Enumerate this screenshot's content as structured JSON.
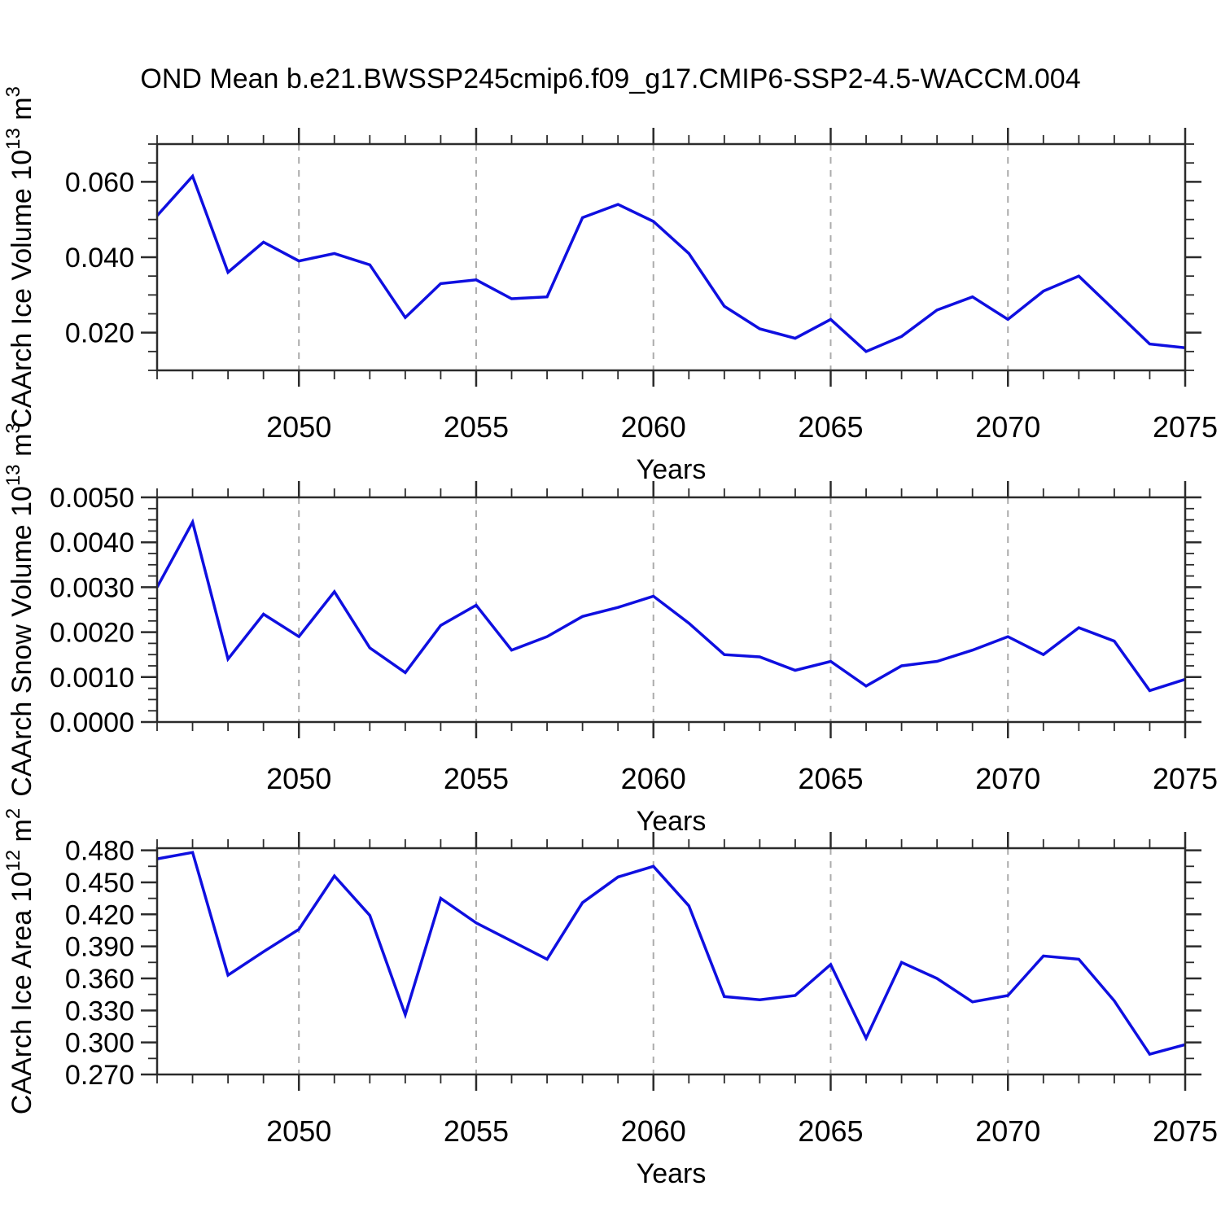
{
  "title": "OND Mean b.e21.BWSSP245cmip6.f09_g17.CMIP6-SSP2-4.5-WACCM.004",
  "colors": {
    "line": "#0f0fe0",
    "frame": "#2b2b2b",
    "grid": "#ababab",
    "text": "#000000",
    "background": "#ffffff"
  },
  "chart_data": [
    {
      "type": "line",
      "panel": "ice-volume",
      "ylabel_segments": [
        {
          "t": "CAArch Ice Volume 10",
          "sup": false
        },
        {
          "t": "13",
          "sup": true
        },
        {
          "t": " m",
          "sup": false
        },
        {
          "t": "3",
          "sup": true
        }
      ],
      "xlabel": "Years",
      "x": [
        2046,
        2047,
        2048,
        2049,
        2050,
        2051,
        2052,
        2053,
        2054,
        2055,
        2056,
        2057,
        2058,
        2059,
        2060,
        2061,
        2062,
        2063,
        2064,
        2065,
        2066,
        2067,
        2068,
        2069,
        2070,
        2071,
        2072,
        2073,
        2074,
        2075
      ],
      "values": [
        0.051,
        0.0615,
        0.036,
        0.044,
        0.039,
        0.041,
        0.038,
        0.024,
        0.033,
        0.034,
        0.029,
        0.0295,
        0.0505,
        0.054,
        0.0495,
        0.041,
        0.027,
        0.021,
        0.0185,
        0.0235,
        0.015,
        0.019,
        0.026,
        0.0295,
        0.0235,
        0.031,
        0.035,
        0.026,
        0.017,
        0.016
      ],
      "xlim": [
        2046,
        2075
      ],
      "ylim": [
        0.01,
        0.07
      ],
      "xtick_major": [
        2050,
        2055,
        2060,
        2065,
        2070,
        2075
      ],
      "xtick_labels": [
        "2050",
        "2055",
        "2060",
        "2065",
        "2070",
        "2075"
      ],
      "xtick_minor_step": 1,
      "grid_years": [
        2050,
        2055,
        2060,
        2065,
        2070
      ],
      "ytick_major": [
        0.02,
        0.04,
        0.06
      ],
      "ytick_labels": [
        "0.020",
        "0.040",
        "0.060"
      ],
      "ytick_minor_step": 0.005
    },
    {
      "type": "line",
      "panel": "snow-volume",
      "ylabel_segments": [
        {
          "t": "CAArch Snow Volume 10",
          "sup": false
        },
        {
          "t": "13",
          "sup": true
        },
        {
          "t": " m",
          "sup": false
        },
        {
          "t": "3",
          "sup": true
        }
      ],
      "xlabel": "Years",
      "x": [
        2046,
        2047,
        2048,
        2049,
        2050,
        2051,
        2052,
        2053,
        2054,
        2055,
        2056,
        2057,
        2058,
        2059,
        2060,
        2061,
        2062,
        2063,
        2064,
        2065,
        2066,
        2067,
        2068,
        2069,
        2070,
        2071,
        2072,
        2073,
        2074,
        2075
      ],
      "values": [
        0.003,
        0.00445,
        0.0014,
        0.0024,
        0.0019,
        0.0029,
        0.00165,
        0.0011,
        0.00215,
        0.0026,
        0.0016,
        0.0019,
        0.00235,
        0.00255,
        0.0028,
        0.0022,
        0.0015,
        0.00145,
        0.00115,
        0.00135,
        0.0008,
        0.00125,
        0.00135,
        0.0016,
        0.0019,
        0.0015,
        0.0021,
        0.0018,
        0.0007,
        0.00095
      ],
      "xlim": [
        2046,
        2075
      ],
      "ylim": [
        0.0,
        0.005
      ],
      "xtick_major": [
        2050,
        2055,
        2060,
        2065,
        2070,
        2075
      ],
      "xtick_labels": [
        "2050",
        "2055",
        "2060",
        "2065",
        "2070",
        "2075"
      ],
      "xtick_minor_step": 1,
      "grid_years": [
        2050,
        2055,
        2060,
        2065,
        2070
      ],
      "ytick_major": [
        0.0,
        0.001,
        0.002,
        0.003,
        0.004,
        0.005
      ],
      "ytick_labels": [
        "0.0000",
        "0.0010",
        "0.0020",
        "0.0030",
        "0.0040",
        "0.0050"
      ],
      "ytick_minor_step": 0.00025
    },
    {
      "type": "line",
      "panel": "ice-area",
      "ylabel_segments": [
        {
          "t": "CAArch Ice Area 10",
          "sup": false
        },
        {
          "t": "12",
          "sup": true
        },
        {
          "t": " m",
          "sup": false
        },
        {
          "t": "2",
          "sup": true
        }
      ],
      "xlabel": "Years",
      "x": [
        2046,
        2047,
        2048,
        2049,
        2050,
        2051,
        2052,
        2053,
        2054,
        2055,
        2056,
        2057,
        2058,
        2059,
        2060,
        2061,
        2062,
        2063,
        2064,
        2065,
        2066,
        2067,
        2068,
        2069,
        2070,
        2071,
        2072,
        2073,
        2074,
        2075
      ],
      "values": [
        0.472,
        0.478,
        0.363,
        0.385,
        0.406,
        0.456,
        0.419,
        0.326,
        0.435,
        0.412,
        0.395,
        0.378,
        0.431,
        0.455,
        0.465,
        0.428,
        0.343,
        0.34,
        0.344,
        0.373,
        0.304,
        0.375,
        0.36,
        0.338,
        0.344,
        0.381,
        0.378,
        0.339,
        0.289,
        0.298
      ],
      "xlim": [
        2046,
        2075
      ],
      "ylim": [
        0.27,
        0.482
      ],
      "xtick_major": [
        2050,
        2055,
        2060,
        2065,
        2070,
        2075
      ],
      "xtick_labels": [
        "2050",
        "2055",
        "2060",
        "2065",
        "2070",
        "2075"
      ],
      "xtick_minor_step": 1,
      "grid_years": [
        2050,
        2055,
        2060,
        2065,
        2070
      ],
      "ytick_major": [
        0.27,
        0.3,
        0.33,
        0.36,
        0.39,
        0.42,
        0.45,
        0.48
      ],
      "ytick_labels": [
        "0.270",
        "0.300",
        "0.330",
        "0.360",
        "0.390",
        "0.420",
        "0.450",
        "0.480"
      ],
      "ytick_minor_step": 0.015
    }
  ]
}
